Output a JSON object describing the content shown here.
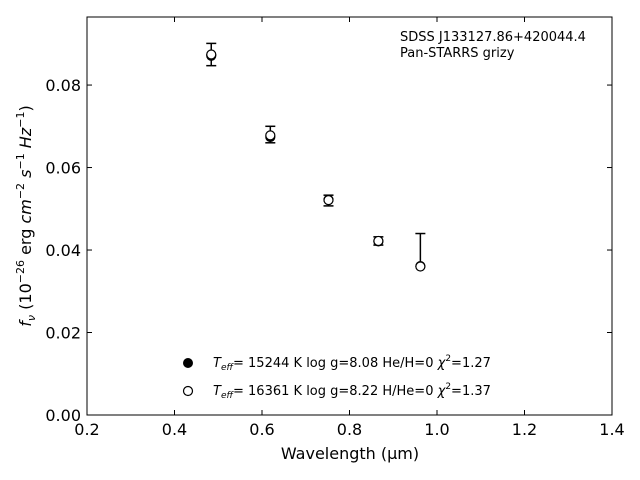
{
  "chart_data": {
    "type": "scatter",
    "xlabel": "Wavelength (μm)",
    "ylabel": "fν (10⁻²⁶ erg cm⁻² s⁻¹ Hz⁻¹)",
    "xlim": [
      0.2,
      1.4
    ],
    "ylim": [
      0.0,
      0.0965
    ],
    "x_ticks": [
      "0.2",
      "0.4",
      "0.6",
      "0.8",
      "1.0",
      "1.2",
      "1.4"
    ],
    "y_ticks": [
      "0.00",
      "0.02",
      "0.04",
      "0.06",
      "0.08"
    ],
    "annotation": [
      "SDSS J133127.86+420044.4",
      "Pan-STARRS grizy"
    ],
    "legend_position": "lower-left",
    "observed": {
      "x": [
        0.484,
        0.619,
        0.752,
        0.866,
        0.962
      ],
      "y": [
        0.0874,
        0.068,
        0.052,
        0.0422,
        0.0361
      ],
      "yerr_upper": [
        0.0027,
        0.002,
        0.0013,
        0.001,
        0.0079
      ],
      "yerr_lower": [
        0.0027,
        0.002,
        0.0013,
        0.001,
        0.0
      ]
    },
    "series": [
      {
        "marker": "filled-circle",
        "legend": "T_eff= 15244 K  log g=8.08  He/H=0  χ²=1.27",
        "x": [
          0.484,
          0.619,
          0.752,
          0.866,
          0.962
        ],
        "y": [
          0.0871,
          0.0674,
          0.0522,
          0.0421,
          0.0361
        ]
      },
      {
        "marker": "open-circle",
        "legend": "T_eff= 16361 K  log g=8.22  H/He=0  χ²=1.37",
        "x": [
          0.484,
          0.619,
          0.752,
          0.866,
          0.962
        ],
        "y": [
          0.0874,
          0.0678,
          0.0521,
          0.0422,
          0.036
        ]
      }
    ],
    "legend": [
      {
        "marker": "filled-circle",
        "teff_value": "= 15244 K",
        "logg": "log g=8.08",
        "comp": "He/H=0",
        "chi_value": "=1.27"
      },
      {
        "marker": "open-circle",
        "teff_value": "= 16361 K",
        "logg": "log g=8.22",
        "comp": "H/He=0",
        "chi_value": "=1.37"
      }
    ]
  }
}
